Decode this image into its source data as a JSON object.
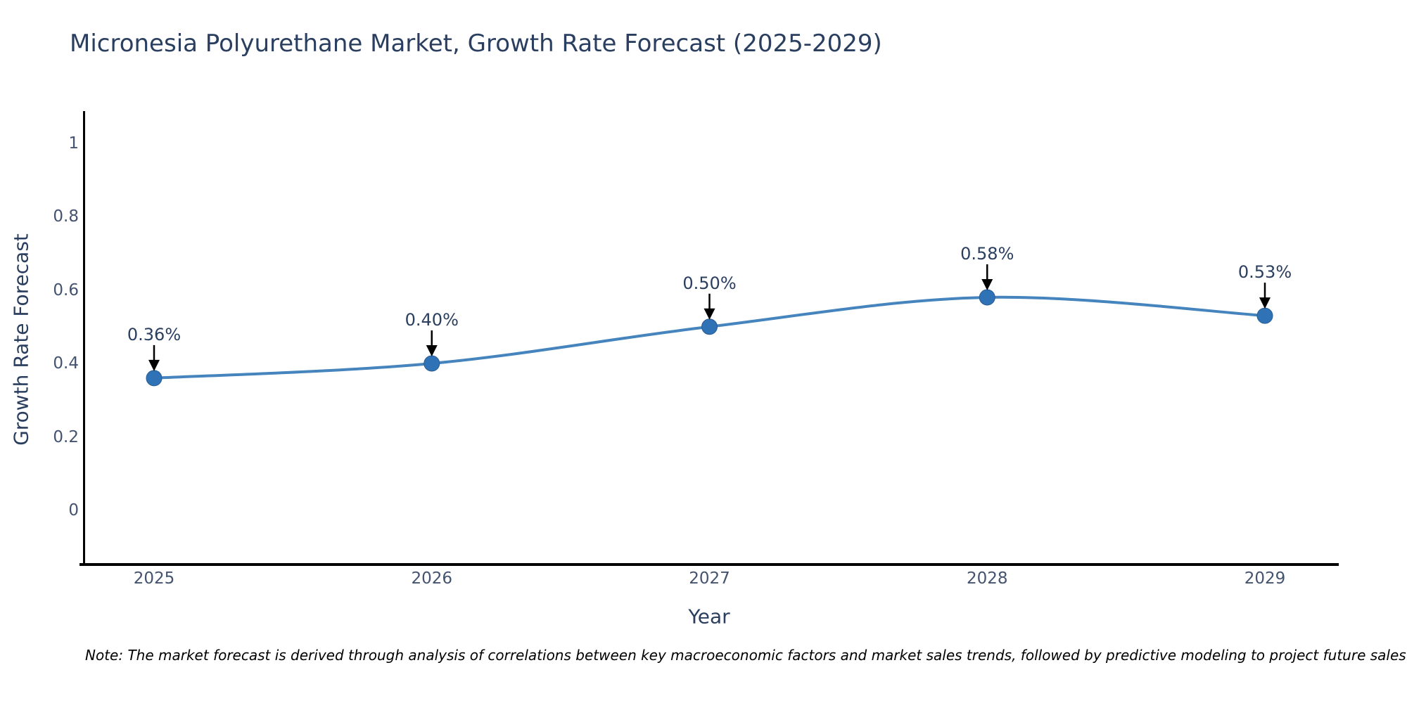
{
  "title": "Micronesia Polyurethane Market, Growth Rate Forecast (2025-2029)",
  "note": "Note: The market forecast is derived through analysis of correlations between key macroeconomic factors and market sales trends, followed by predictive modeling to project future sales",
  "chart_data": {
    "type": "line",
    "title": "Micronesia Polyurethane Market, Growth Rate Forecast (2025-2029)",
    "xlabel": "Year",
    "ylabel": "Growth Rate Forecast",
    "categories": [
      "2025",
      "2026",
      "2027",
      "2028",
      "2029"
    ],
    "series": [
      {
        "name": "Growth Rate Forecast",
        "values": [
          0.36,
          0.4,
          0.5,
          0.58,
          0.53
        ]
      }
    ],
    "point_labels": [
      "0.36%",
      "0.40%",
      "0.50%",
      "0.58%",
      "0.53%"
    ],
    "y_tick_labels": [
      "1",
      "0.8",
      "0.6",
      "0.4",
      "0.2",
      "0"
    ],
    "y_tick_values": [
      1,
      0.8,
      0.6,
      0.4,
      0.2,
      0
    ],
    "ylim": [
      -0.15,
      1.08
    ],
    "grid": false,
    "legend_position": "none",
    "line_shape": "spline",
    "annotations": "value labels with black arrows pointing to each marker",
    "colors": {
      "line": "#4584bd",
      "marker": "#2f72b5",
      "arrow": "#000000",
      "axis": "#000000",
      "title_text": "#2a3f5f",
      "tick_text": "#44536f",
      "note_text": "#000000"
    }
  }
}
